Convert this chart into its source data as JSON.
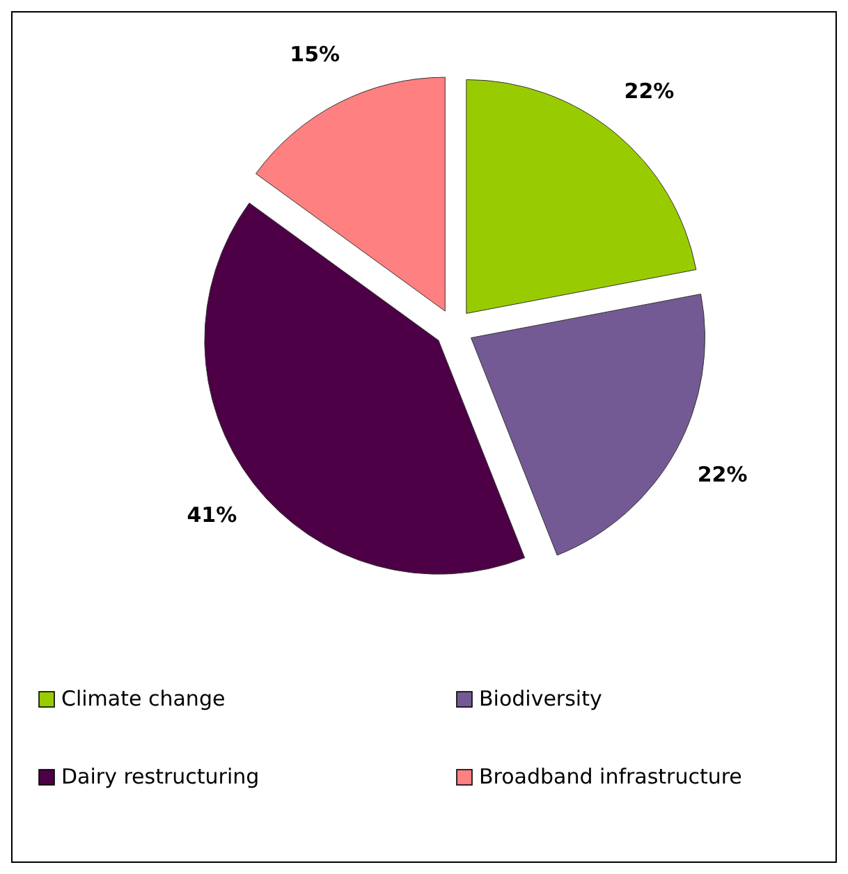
{
  "chart_data": {
    "type": "pie",
    "categories": [
      "Climate change",
      "Biodiversity",
      "Dairy restructuring",
      "Broadband infrastructure"
    ],
    "values": [
      22,
      22,
      41,
      15
    ],
    "colors": [
      "#99cc00",
      "#745a94",
      "#4d0046",
      "#ff8080"
    ],
    "value_labels": [
      "22%",
      "22%",
      "41%",
      "15%"
    ],
    "legend": "bottom"
  }
}
